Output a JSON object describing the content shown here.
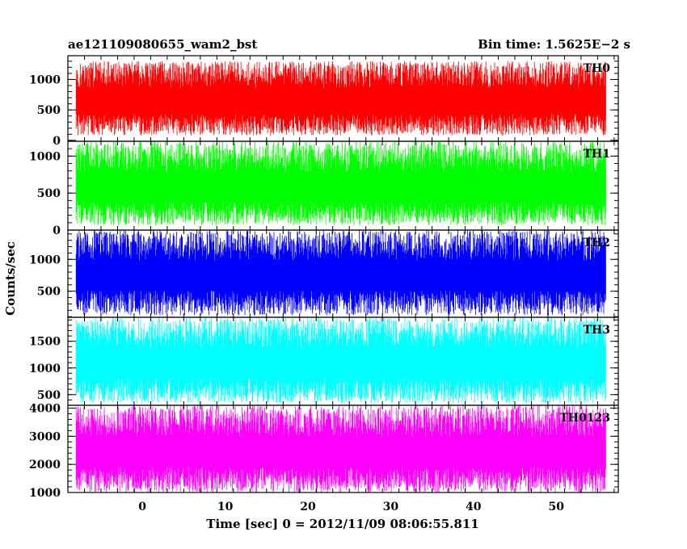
{
  "header": {
    "title": "ae121109080655_wam2_bst",
    "bin_time": "Bin time: 1.5625E−2 s"
  },
  "chart_data": {
    "type": "line",
    "xlabel": "Time [sec] 0 = 2012/11/09 08:06:55.811",
    "ylabel": "Counts/sec",
    "xlim": [
      -9,
      57.5
    ],
    "x_data_range": [
      -8,
      56
    ],
    "x_ticks": [
      0,
      10,
      20,
      30,
      40,
      50
    ],
    "grid": false,
    "panels": [
      {
        "name": "TH0",
        "color": "#ff0000",
        "ylim": [
          -15,
          1390
        ],
        "yticks": [
          0,
          500,
          1000
        ],
        "band": [
          80,
          1300
        ],
        "baseline": 620
      },
      {
        "name": "TH1",
        "color": "#00ff00",
        "ylim": [
          0,
          1200
        ],
        "yticks": [
          0,
          500,
          1000
        ],
        "band": [
          60,
          1200
        ],
        "baseline": 560
      },
      {
        "name": "TH2",
        "color": "#0000ff",
        "ylim": [
          90,
          1460
        ],
        "yticks": [
          500,
          1000
        ],
        "band": [
          120,
          1460
        ],
        "baseline": 720
      },
      {
        "name": "TH3",
        "color": "#00ffff",
        "ylim": [
          300,
          1950
        ],
        "yticks": [
          500,
          1000,
          1500
        ],
        "band": [
          330,
          1950
        ],
        "baseline": 1060
      },
      {
        "name": "TH0123",
        "color": "#ff00ff",
        "ylim": [
          1000,
          4100
        ],
        "yticks": [
          1000,
          2000,
          3000,
          4000
        ],
        "band": [
          1000,
          4100
        ],
        "baseline": 2400
      }
    ]
  }
}
